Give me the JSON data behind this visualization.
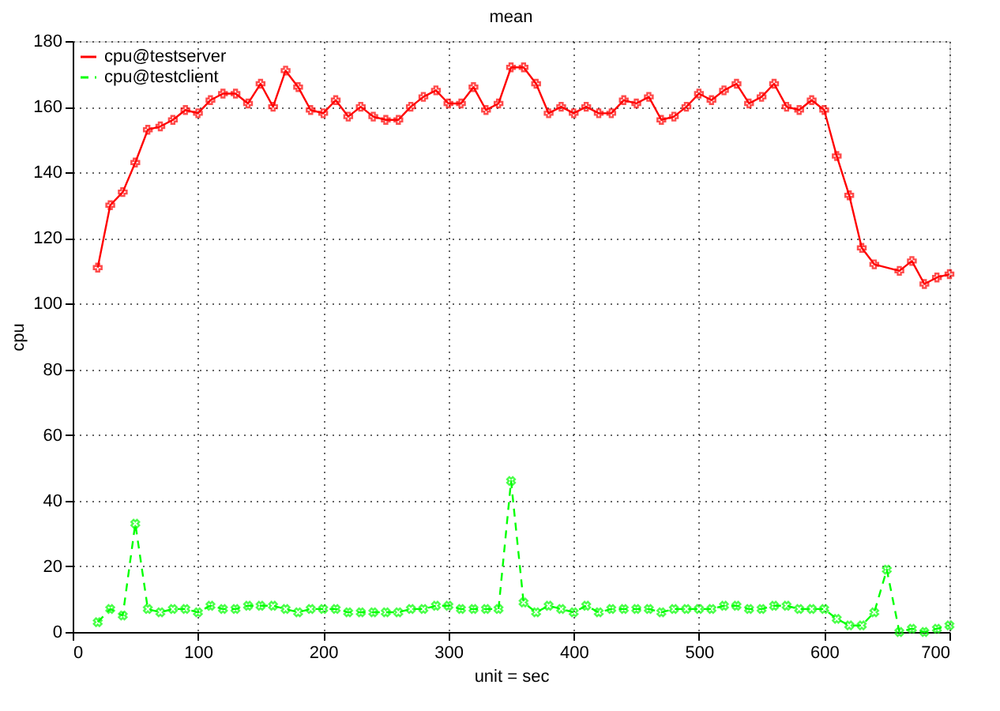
{
  "chart_data": {
    "type": "line",
    "title": "mean",
    "xlabel": "unit = sec",
    "ylabel": "cpu",
    "xlim": [
      0,
      700
    ],
    "xticks": [
      0,
      100,
      200,
      300,
      400,
      500,
      600,
      700
    ],
    "ylim": [
      0,
      180
    ],
    "yticks": [
      0,
      20,
      40,
      60,
      80,
      100,
      120,
      140,
      160,
      180
    ],
    "grid": true,
    "legend": "top left",
    "series": [
      {
        "name": "cpu@testserver",
        "color": "#ff0000",
        "marker": "cross",
        "line_style": "solid",
        "x": [
          20,
          30,
          40,
          50,
          60,
          70,
          80,
          90,
          100,
          110,
          120,
          130,
          140,
          150,
          160,
          170,
          180,
          190,
          200,
          210,
          220,
          230,
          240,
          250,
          260,
          270,
          280,
          290,
          300,
          310,
          320,
          330,
          340,
          350,
          360,
          370,
          380,
          390,
          400,
          410,
          420,
          430,
          440,
          450,
          460,
          470,
          480,
          490,
          500,
          510,
          520,
          530,
          540,
          550,
          560,
          570,
          580,
          590,
          600,
          610,
          620,
          630,
          640,
          660,
          670,
          680,
          690,
          700
        ],
        "values": [
          111,
          130,
          134,
          143,
          153,
          154,
          156,
          159,
          158,
          162,
          164,
          164,
          161,
          167,
          160,
          171,
          166,
          159,
          158,
          162,
          157,
          160,
          157,
          156,
          156,
          160,
          163,
          165,
          161,
          161,
          166,
          159,
          161,
          172,
          172,
          167,
          158,
          160,
          158,
          160,
          158,
          158,
          162,
          161,
          163,
          156,
          157,
          160,
          164,
          162,
          165,
          167,
          161,
          163,
          167,
          160,
          159,
          162,
          159,
          145,
          133,
          117,
          112,
          110,
          113,
          106,
          108,
          109
        ]
      },
      {
        "name": "cpu@testclient",
        "color": "#00ff00",
        "marker": "cross",
        "line_style": "dashed",
        "x": [
          20,
          30,
          40,
          50,
          60,
          70,
          80,
          90,
          100,
          110,
          120,
          130,
          140,
          150,
          160,
          170,
          180,
          190,
          200,
          210,
          220,
          230,
          240,
          250,
          260,
          270,
          280,
          290,
          300,
          310,
          320,
          330,
          340,
          350,
          360,
          370,
          380,
          390,
          400,
          410,
          420,
          430,
          440,
          450,
          460,
          470,
          480,
          490,
          500,
          510,
          520,
          530,
          540,
          550,
          560,
          570,
          580,
          590,
          600,
          610,
          620,
          630,
          640,
          650,
          660,
          670,
          680,
          690,
          700
        ],
        "values": [
          3,
          7,
          5,
          33,
          7,
          6,
          7,
          7,
          6,
          8,
          7,
          7,
          8,
          8,
          8,
          7,
          6,
          7,
          7,
          7,
          6,
          6,
          6,
          6,
          6,
          7,
          7,
          8,
          8,
          7,
          7,
          7,
          7,
          46,
          9,
          6,
          8,
          7,
          6,
          8,
          6,
          7,
          7,
          7,
          7,
          6,
          7,
          7,
          7,
          7,
          8,
          8,
          7,
          7,
          8,
          8,
          7,
          7,
          7,
          4,
          2,
          2,
          6,
          19,
          0,
          1,
          0,
          1,
          2
        ]
      }
    ]
  }
}
